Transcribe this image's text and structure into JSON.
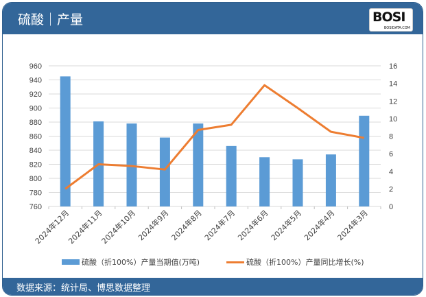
{
  "header": {
    "title": "硫酸｜产量",
    "logo_text": "BOSI",
    "logo_sub": "BOSIDATA.COM"
  },
  "footer": {
    "source": "数据来源：统计局、博思数据整理"
  },
  "chart_data": {
    "type": "bar+line",
    "categories": [
      "2024年12月",
      "2024年11月",
      "2024年10月",
      "2024年9月",
      "2024年8月",
      "2024年7月",
      "2024年6月",
      "2024年5月",
      "2024年4月",
      "2024年3月"
    ],
    "series": [
      {
        "name": "硫酸（折100%）产量当期值(万吨)",
        "type": "bar",
        "axis": "left",
        "color": "#5b9bd5",
        "values": [
          945,
          881,
          878,
          858,
          878,
          846,
          830,
          827,
          834,
          889
        ]
      },
      {
        "name": "硫酸（折100%）产量同比增长(%)",
        "type": "line",
        "axis": "right",
        "color": "#ed7d31",
        "values": [
          2.0,
          4.8,
          4.6,
          4.2,
          8.7,
          9.3,
          13.8,
          11.2,
          8.5,
          7.8
        ]
      }
    ],
    "y_left": {
      "range": [
        760,
        960
      ],
      "ticks": [
        760,
        780,
        800,
        820,
        840,
        860,
        880,
        900,
        920,
        940,
        960
      ]
    },
    "y_right": {
      "range": [
        0,
        16
      ],
      "ticks": [
        0,
        2,
        4,
        6,
        8,
        10,
        12,
        14,
        16
      ]
    },
    "grid": true,
    "legend": "bottom"
  }
}
